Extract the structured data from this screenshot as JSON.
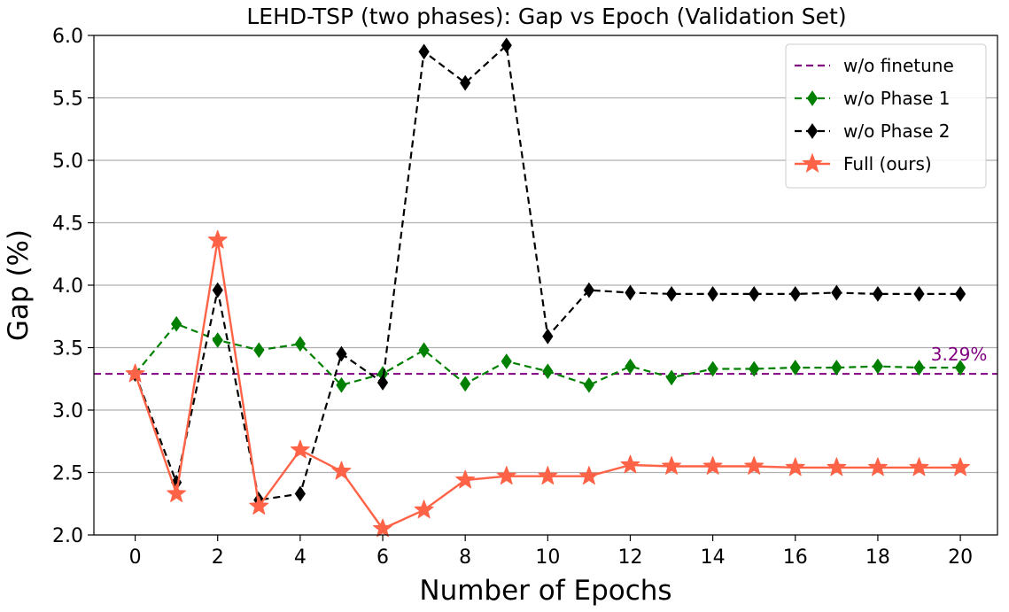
{
  "chart_data": {
    "type": "line",
    "title": "LEHD-TSP (two phases): Gap vs Epoch (Validation Set)",
    "xlabel": "Number of Epochs",
    "ylabel": "Gap (%)",
    "xlim": [
      -1,
      20.9
    ],
    "ylim": [
      2.0,
      6.0
    ],
    "xticks": [
      0,
      2,
      4,
      6,
      8,
      10,
      12,
      14,
      16,
      18,
      20
    ],
    "yticks": [
      2.0,
      2.5,
      3.0,
      3.5,
      4.0,
      4.5,
      5.0,
      5.5,
      6.0
    ],
    "xtick_labels": [
      "0",
      "2",
      "4",
      "6",
      "8",
      "10",
      "12",
      "14",
      "16",
      "18",
      "20"
    ],
    "ytick_labels": [
      "2.0",
      "2.5",
      "3.0",
      "3.5",
      "4.0",
      "4.5",
      "5.0",
      "5.5",
      "6.0"
    ],
    "grid": "horizontal",
    "legend_position": "top-right",
    "x": [
      0,
      1,
      2,
      3,
      4,
      5,
      6,
      7,
      8,
      9,
      10,
      11,
      12,
      13,
      14,
      15,
      16,
      17,
      18,
      19,
      20
    ],
    "reference_line": {
      "name": "w/o finetune",
      "value": 3.29,
      "label": "3.29%",
      "color": "#800080",
      "style": "dashed"
    },
    "series": [
      {
        "name": "w/o Phase 1",
        "color": "#008000",
        "style": "dashed",
        "marker": "diamond",
        "values": [
          3.29,
          3.69,
          3.56,
          3.48,
          3.53,
          3.2,
          3.29,
          3.48,
          3.21,
          3.39,
          3.31,
          3.2,
          3.35,
          3.26,
          3.33,
          3.33,
          3.34,
          3.34,
          3.35,
          3.34,
          3.34
        ]
      },
      {
        "name": "w/o Phase 2",
        "color": "#000000",
        "style": "dashed",
        "marker": "diamond",
        "values": [
          3.29,
          2.42,
          3.96,
          2.28,
          2.33,
          3.45,
          3.22,
          5.87,
          5.62,
          5.92,
          3.59,
          3.96,
          3.94,
          3.93,
          3.93,
          3.93,
          3.93,
          3.94,
          3.93,
          3.93,
          3.93
        ]
      },
      {
        "name": "Full (ours)",
        "color": "#ff6347",
        "style": "solid",
        "marker": "star",
        "values": [
          3.29,
          2.33,
          4.36,
          2.23,
          2.68,
          2.51,
          2.05,
          2.2,
          2.44,
          2.47,
          2.47,
          2.47,
          2.56,
          2.55,
          2.55,
          2.55,
          2.54,
          2.54,
          2.54,
          2.54,
          2.54
        ]
      }
    ]
  }
}
